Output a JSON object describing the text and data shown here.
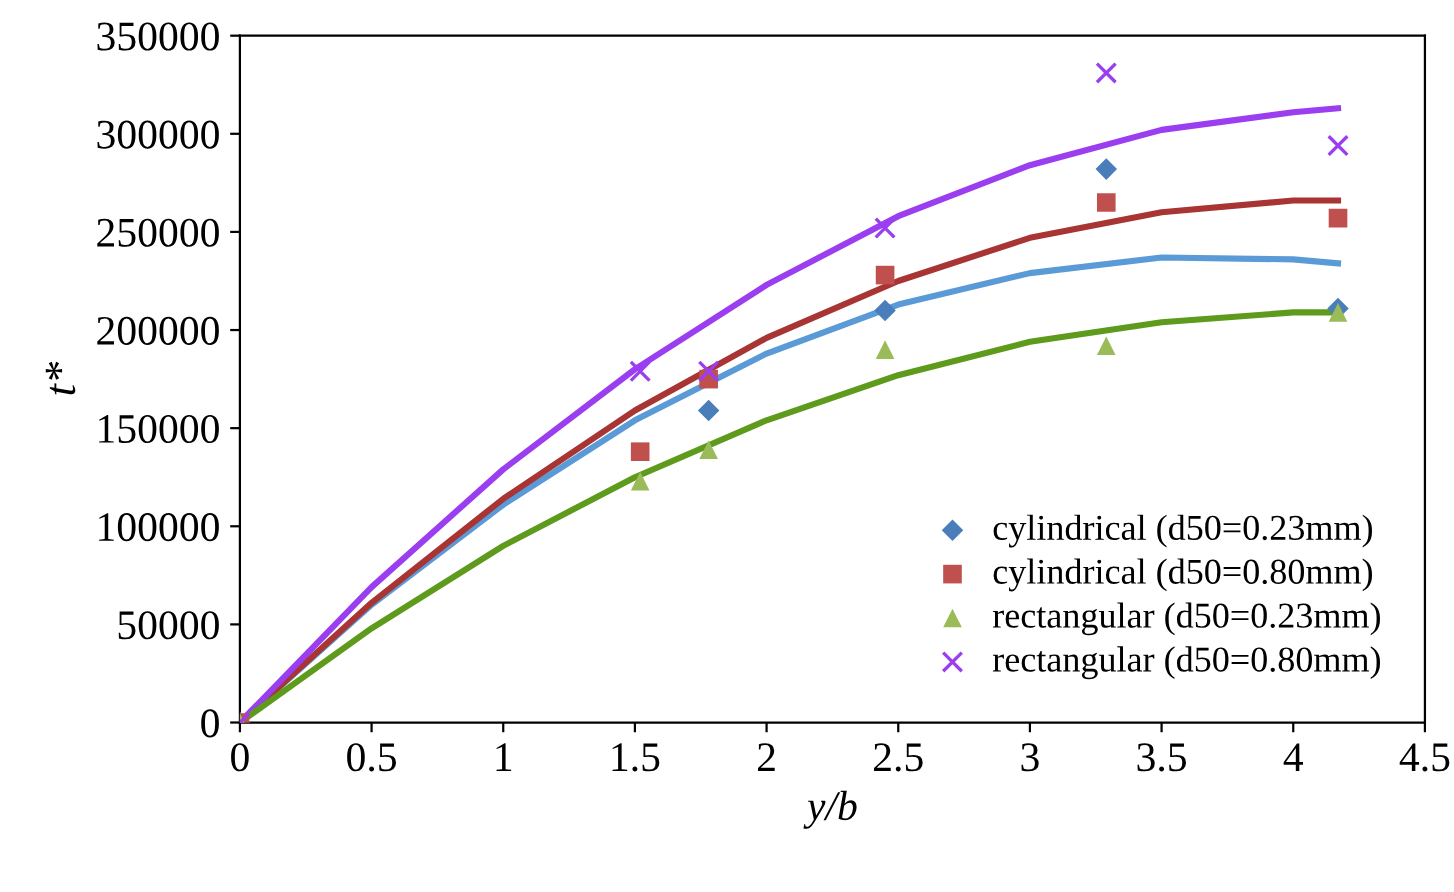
{
  "chart_data": {
    "type": "scatter",
    "xlabel": "y/b",
    "ylabel": "t*",
    "xlim": [
      0,
      4.5
    ],
    "xticks": [
      0,
      0.5,
      1,
      1.5,
      2,
      2.5,
      3,
      3.5,
      4,
      4.5
    ],
    "ylim": [
      0,
      350000
    ],
    "yticks": [
      0,
      50000,
      100000,
      150000,
      200000,
      250000,
      300000,
      350000
    ],
    "grid": false,
    "legend": "bottom right",
    "series": [
      {
        "type": "line",
        "color": "#5a9ad6",
        "marker": "none",
        "x": [
          0,
          0.5,
          1,
          1.5,
          2,
          2.5,
          3,
          3.5,
          4,
          4.17
        ],
        "values": [
          0,
          60000,
          111000,
          154000,
          188000,
          213000,
          229000,
          237000,
          236000,
          234000
        ]
      },
      {
        "type": "line",
        "color": "#a83434",
        "marker": "none",
        "x": [
          0,
          0.5,
          1,
          1.5,
          2,
          2.5,
          3,
          3.5,
          4,
          4.17
        ],
        "values": [
          0,
          61000,
          114000,
          159000,
          196000,
          225000,
          247000,
          260000,
          266000,
          266000
        ]
      },
      {
        "type": "line",
        "color": "#9a3ef0",
        "marker": "none",
        "x": [
          0,
          0.5,
          1,
          1.5,
          2,
          2.5,
          3,
          3.5,
          4,
          4.17
        ],
        "values": [
          0,
          69000,
          129000,
          180000,
          223000,
          258000,
          284000,
          302000,
          311000,
          313000
        ]
      },
      {
        "type": "line",
        "color": "#5e9a1c",
        "marker": "none",
        "x": [
          0,
          0.5,
          1,
          1.5,
          2,
          2.5,
          3,
          3.5,
          4,
          4.17
        ],
        "values": [
          0,
          48000,
          90000,
          125000,
          154000,
          177000,
          194000,
          204000,
          209000,
          209000
        ]
      },
      {
        "name": "cylindrical (d50=0.23mm)",
        "color": "#4a7ebb",
        "marker": "diamond",
        "x": [
          0,
          1.52,
          1.78,
          2.45,
          3.29,
          4.17
        ],
        "values": [
          0,
          null,
          159000,
          210000,
          282000,
          211000
        ]
      },
      {
        "name": "cylindrical (d50=0.80mm)",
        "color": "#c0504d",
        "marker": "square",
        "x": [
          0,
          1.52,
          1.78,
          2.45,
          3.29,
          4.17
        ],
        "values": [
          0,
          138000,
          175000,
          228000,
          265000,
          257000
        ]
      },
      {
        "name": "rectangular (d50=0.23mm)",
        "color": "#9bbb59",
        "marker": "triangle",
        "x": [
          0,
          1.52,
          1.78,
          2.45,
          3.29,
          4.17
        ],
        "values": [
          0,
          123000,
          139000,
          190000,
          192000,
          209000
        ]
      },
      {
        "name": "rectangular (d50=0.80mm)",
        "color": "#9a3ef0",
        "marker": "cross",
        "x": [
          0,
          1.52,
          1.78,
          2.45,
          3.29,
          4.17
        ],
        "values": [
          0,
          179000,
          179000,
          252000,
          331000,
          294000
        ]
      }
    ]
  }
}
